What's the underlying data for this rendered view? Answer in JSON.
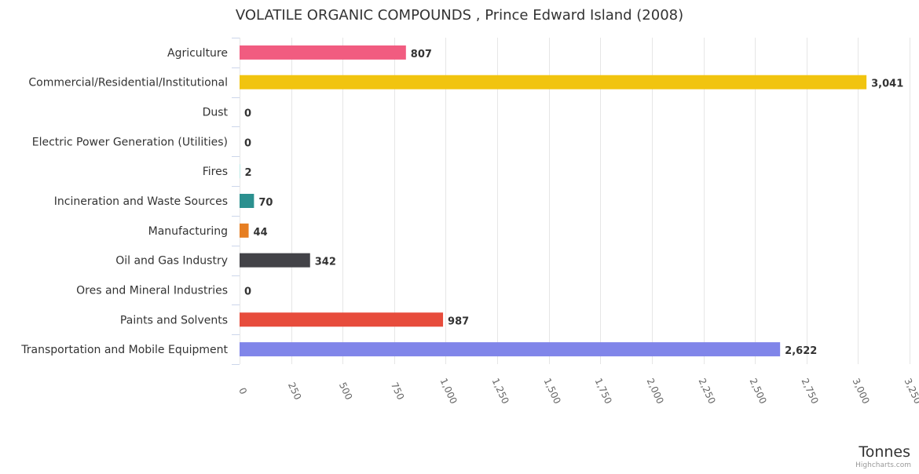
{
  "chart_data": {
    "type": "bar",
    "orientation": "horizontal",
    "title": "VOLATILE ORGANIC COMPOUNDS , Prince Edward Island (2008)",
    "xlabel": "",
    "ylabel": "Tonnes",
    "xlim": [
      0,
      3250
    ],
    "ticks": [
      0,
      250,
      500,
      750,
      1000,
      1250,
      1500,
      1750,
      2000,
      2250,
      2500,
      2750,
      3000,
      3250
    ],
    "tick_labels": [
      "0",
      "250",
      "500",
      "750",
      "1,000",
      "1,250",
      "1,500",
      "1,750",
      "2,000",
      "2,250",
      "2,500",
      "2,750",
      "3,000",
      "3,250"
    ],
    "grid": true,
    "legend": "none",
    "categories": [
      "Agriculture",
      "Commercial/Residential/Institutional",
      "Dust",
      "Electric Power Generation (Utilities)",
      "Fires",
      "Incineration and Waste Sources",
      "Manufacturing",
      "Oil and Gas Industry",
      "Ores and Mineral Industries",
      "Paints and Solvents",
      "Transportation and Mobile Equipment"
    ],
    "values": [
      807,
      3041,
      0,
      0,
      2,
      70,
      44,
      342,
      0,
      987,
      2622
    ],
    "value_labels": [
      "807",
      "3,041",
      "0",
      "0",
      "2",
      "70",
      "44",
      "342",
      "0",
      "987",
      "2,622"
    ],
    "colors": [
      "#f15c80",
      "#f1c40f",
      "#2b908f",
      "#f7a35c",
      "#91e8e1",
      "#2b908f",
      "#e67e22",
      "#434348",
      "#8085e9",
      "#e74c3c",
      "#8085e9"
    ]
  },
  "credits": "Highcharts.com"
}
